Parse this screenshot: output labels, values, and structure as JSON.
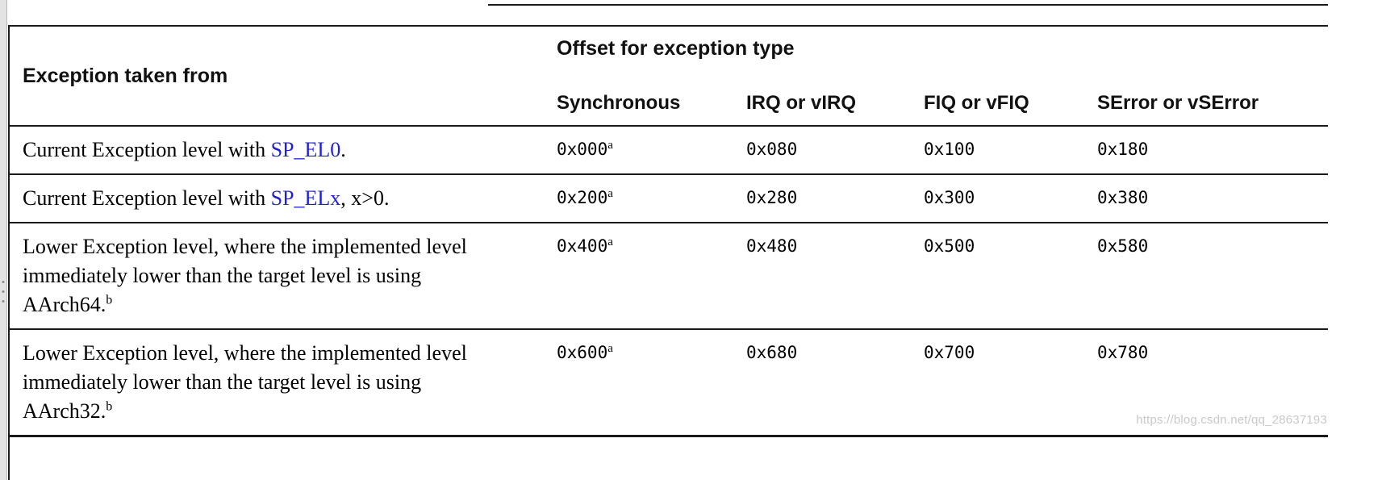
{
  "table": {
    "header": {
      "exception_taken_from": "Exception taken from",
      "offset_group": "Offset for exception type",
      "columns": [
        "Synchronous",
        "IRQ or vIRQ",
        "FIQ or vFIQ",
        "SError or vSError"
      ]
    },
    "rows": [
      {
        "label_prefix": "Current Exception level with ",
        "label_link": "SP_EL0",
        "label_suffix": ".",
        "label_sup": "",
        "synchronous": "0x000",
        "synchronous_sup": "a",
        "irq": "0x080",
        "fiq": "0x100",
        "serror": "0x180"
      },
      {
        "label_prefix": "Current Exception level with ",
        "label_link": "SP_ELx",
        "label_suffix": ", x>0.",
        "label_sup": "",
        "synchronous": "0x200",
        "synchronous_sup": "a",
        "irq": "0x280",
        "fiq": "0x300",
        "serror": "0x380"
      },
      {
        "label_prefix": "Lower Exception level, where the implemented level immediately lower than the target level is using AArch64.",
        "label_link": "",
        "label_suffix": "",
        "label_sup": "b",
        "synchronous": "0x400",
        "synchronous_sup": "a",
        "irq": "0x480",
        "fiq": "0x500",
        "serror": "0x580"
      },
      {
        "label_prefix": "Lower Exception level, where the implemented level immediately lower than the target level is using AArch32.",
        "label_link": "",
        "label_suffix": "",
        "label_sup": "b",
        "synchronous": "0x600",
        "synchronous_sup": "a",
        "irq": "0x680",
        "fiq": "0x700",
        "serror": "0x780"
      }
    ]
  },
  "watermark": "https://blog.csdn.net/qq_28637193",
  "colors": {
    "link": "#2222cc",
    "rule": "#1a1a1a",
    "watermark": "#c9c9c9"
  }
}
